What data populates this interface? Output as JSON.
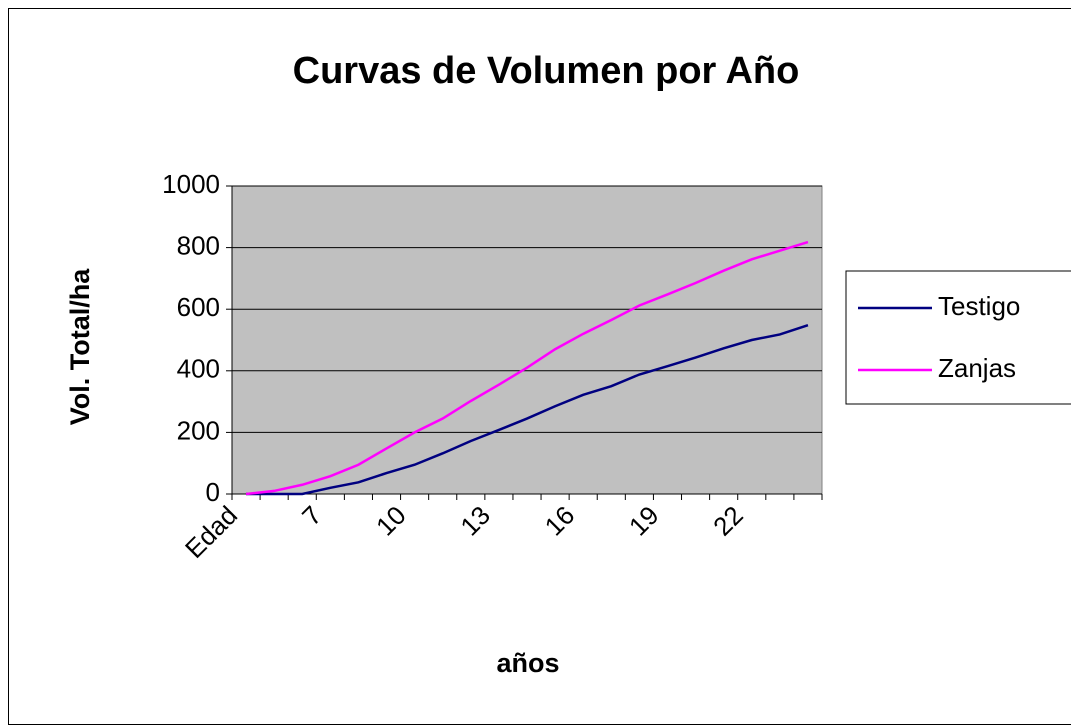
{
  "chart_data": {
    "type": "line",
    "title": "Curvas de Volumen por Año",
    "x_label": "años",
    "y_label": "Vol. Total/ha",
    "categories": [
      "Edad",
      null,
      null,
      "7",
      null,
      null,
      "10",
      null,
      null,
      "13",
      null,
      null,
      "16",
      null,
      null,
      "19",
      null,
      null,
      "22",
      null,
      null
    ],
    "series": [
      {
        "name": "Testigo",
        "color": "#000080",
        "values": [
          0,
          0,
          0,
          20,
          38,
          68,
          95,
          132,
          172,
          208,
          245,
          285,
          322,
          350,
          388,
          415,
          443,
          473,
          500,
          518,
          548
        ]
      },
      {
        "name": "Zanjas",
        "color": "#ff00ff",
        "values": [
          0,
          10,
          30,
          58,
          95,
          148,
          200,
          245,
          302,
          355,
          410,
          470,
          520,
          565,
          612,
          648,
          685,
          725,
          762,
          790,
          818
        ]
      }
    ],
    "ylim": [
      0,
      1000
    ],
    "yticks": [
      0,
      200,
      400,
      600,
      800,
      1000
    ],
    "grid": true,
    "plot_background": "#c0c0c0",
    "legend": "right"
  }
}
